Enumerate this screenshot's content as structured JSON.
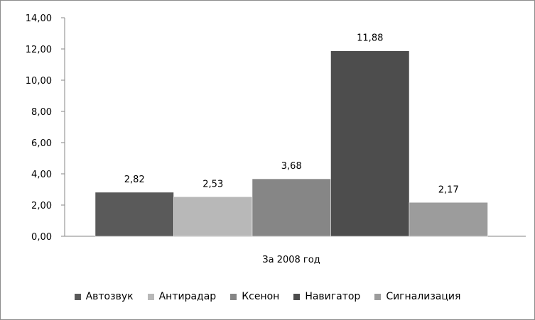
{
  "chart_data": {
    "type": "bar",
    "title": "",
    "xlabel": "",
    "ylabel": "",
    "categories": [
      "За 2008 год"
    ],
    "series": [
      {
        "name": "Автозвук",
        "values": [
          2.82
        ],
        "label": "2,82",
        "color": "#5a5a5a"
      },
      {
        "name": "Антирадар",
        "values": [
          2.53
        ],
        "label": "2,53",
        "color": "#b8b8b8"
      },
      {
        "name": "Ксенон",
        "values": [
          3.68
        ],
        "label": "3,68",
        "color": "#868686"
      },
      {
        "name": "Навигатор",
        "values": [
          11.88
        ],
        "label": "11,88",
        "color": "#4d4d4d"
      },
      {
        "name": "Сигнализация",
        "values": [
          2.17
        ],
        "label": "2,17",
        "color": "#9c9c9c"
      }
    ],
    "ylim": [
      0,
      14
    ],
    "yticks": [
      "0,00",
      "2,00",
      "4,00",
      "6,00",
      "8,00",
      "10,00",
      "12,00",
      "14,00"
    ],
    "grid": false,
    "legend_position": "bottom"
  }
}
